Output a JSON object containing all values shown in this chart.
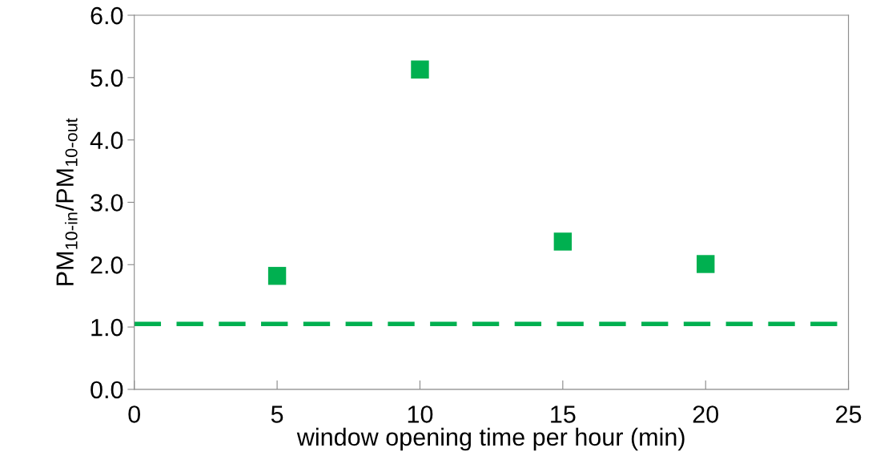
{
  "chart_data": {
    "type": "scatter",
    "xlabel": "window opening time per hour (min)",
    "ylabel": "PM$_{10-in}$/PM$_{10-out}$",
    "x": [
      5,
      10,
      15,
      20
    ],
    "series": [
      {
        "color": "#00b050",
        "values": [
          1.82,
          5.13,
          2.37,
          2.01
        ]
      }
    ],
    "marker": "square",
    "xlim": [
      0,
      25
    ],
    "xticks": [
      0,
      5,
      10,
      15,
      20,
      25
    ],
    "ylim": [
      0,
      6
    ],
    "yticks": [
      {
        "value": 0,
        "label": "0.0"
      },
      {
        "value": 1,
        "label": "1.0"
      },
      {
        "value": 2,
        "label": "2.0"
      },
      {
        "value": 3,
        "label": "3.0"
      },
      {
        "value": 4,
        "label": "4.0"
      },
      {
        "value": 5,
        "label": "5.0"
      },
      {
        "value": 6,
        "label": "6.0"
      }
    ],
    "ref_lines": [
      {
        "axis": "y",
        "value": 1.05,
        "color": "#00b050",
        "line_style": "dashed"
      }
    ],
    "grid": false,
    "legend": false
  }
}
